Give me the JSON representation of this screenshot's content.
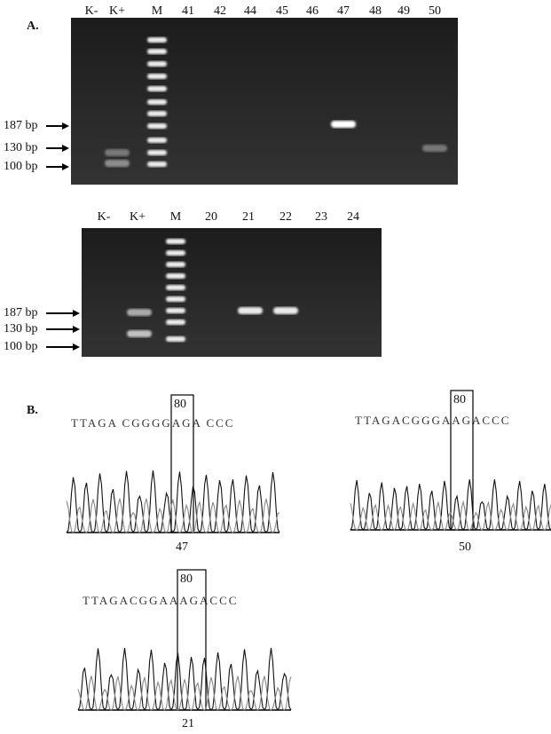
{
  "panel_a": {
    "label": "A.",
    "gel_1": {
      "lanes": [
        "K-",
        "K+",
        "M",
        "41",
        "42",
        "44",
        "45",
        "46",
        "47",
        "48",
        "49",
        "50"
      ],
      "markers": [
        "187 bp",
        "130 bp",
        "100 bp"
      ]
    },
    "gel_2": {
      "lanes": [
        "K-",
        "K+",
        "M",
        "20",
        "21",
        "22",
        "23",
        "24"
      ],
      "markers": [
        "187 bp",
        "130 bp",
        "100 bp"
      ]
    }
  },
  "panel_b": {
    "label": "B.",
    "traces": [
      {
        "sequence": "TTAGA CGGGGAGA CCC",
        "position": "80",
        "sample": "47"
      },
      {
        "sequence": "TTAGACGGGAAGACCC",
        "position": "80",
        "sample": "50"
      },
      {
        "sequence": "TTAGACGGAAAGACCC",
        "position": "80",
        "sample": "21"
      }
    ]
  }
}
